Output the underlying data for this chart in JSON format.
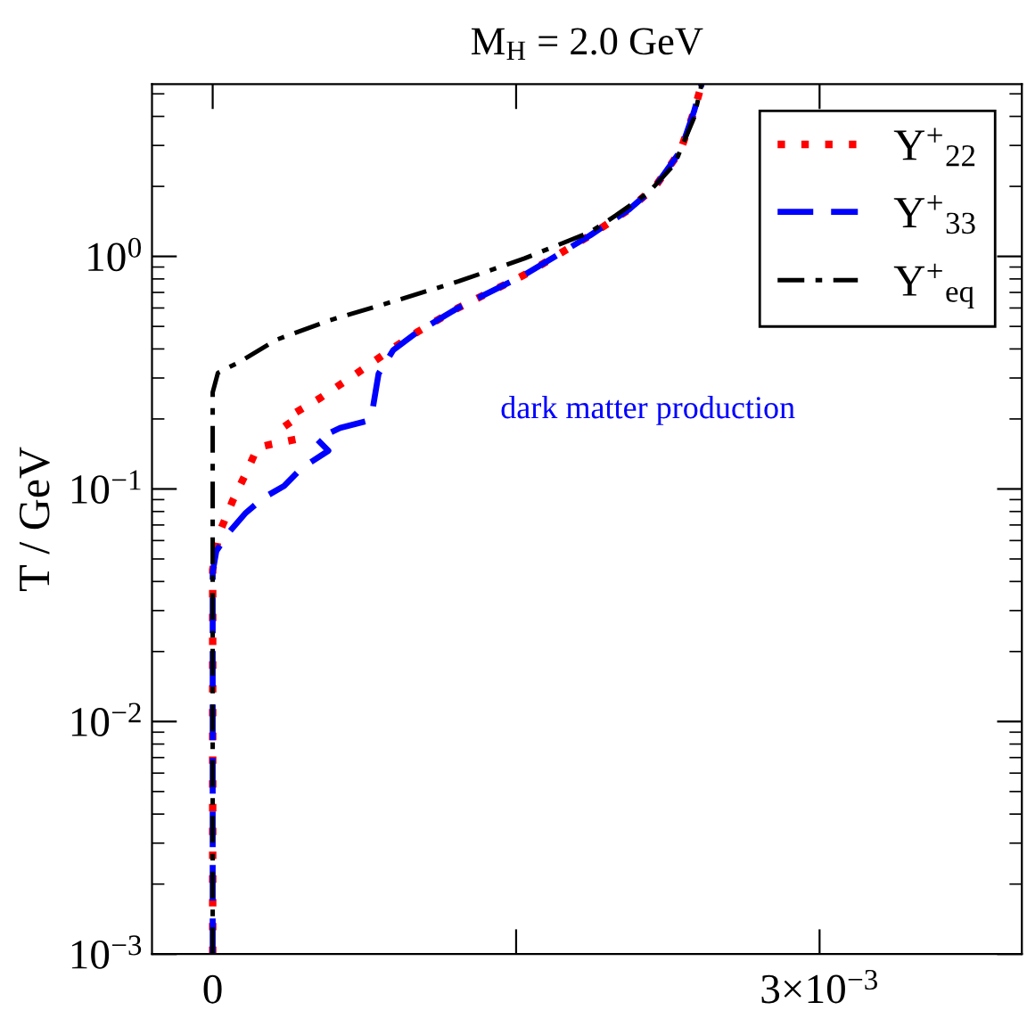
{
  "chart_data": {
    "type": "line",
    "title": "M$_{H}$ = 2.0 GeV",
    "ylabel": "T / GeV",
    "log": "y",
    "xlim": [
      -0.0003,
      0.004
    ],
    "xticks": [
      {
        "value": 0,
        "label": "0"
      },
      {
        "value": 0.0015,
        "label": null
      },
      {
        "value": 0.003,
        "label": "3×10$^{−3}$"
      }
    ],
    "ylim": [
      0.001,
      5.5
    ],
    "yticks": [
      {
        "value": 0.001,
        "label": "10$^{−3}$"
      },
      {
        "value": 0.01,
        "label": "10$^{−2}$"
      },
      {
        "value": 0.1,
        "label": "10$^{−1}$"
      },
      {
        "value": 1,
        "label": "10$^{0}$"
      }
    ],
    "grid": false,
    "legend": "top right",
    "marker": "none",
    "annotations": [
      "dark matter production"
    ],
    "series": [
      {
        "name": "Y$^{+}$$_{22}$",
        "color": "#ff0000",
        "line_style": "dotted",
        "x": [
          0,
          0,
          3.2e-05,
          9.9e-05,
          0.000169,
          0.000222,
          0.00028,
          0.00042,
          0.000353,
          0.000528,
          0.000703,
          0.000878,
          0.00101,
          0.001217,
          0.001541,
          0.001865,
          0.002058,
          0.002186,
          0.002312,
          0.002379,
          0.002417
        ],
        "values": [
          0.001,
          0.045,
          0.0644,
          0.089,
          0.119,
          0.151,
          0.155,
          0.164,
          0.199,
          0.245,
          0.31,
          0.396,
          0.472,
          0.603,
          0.833,
          1.23,
          1.59,
          1.99,
          2.84,
          4.19,
          5.5
        ]
      },
      {
        "name": "Y$^{+}$$_{33}$",
        "color": "#0000ff",
        "line_style": "dashed",
        "x": [
          0,
          0,
          1.8e-05,
          7.6e-05,
          0.000164,
          0.000251,
          0.000353,
          0.00044,
          0.000572,
          0.000514,
          0.00063,
          0.000762,
          0.000791,
          0.00082,
          0.000893,
          0.00101,
          0.001217,
          0.001541,
          0.001865,
          0.002058,
          0.002186,
          0.002312,
          0.002379,
          0.002417
        ],
        "values": [
          0.001,
          0.044,
          0.054,
          0.0644,
          0.079,
          0.0916,
          0.103,
          0.123,
          0.146,
          0.164,
          0.183,
          0.196,
          0.221,
          0.313,
          0.396,
          0.472,
          0.603,
          0.833,
          1.23,
          1.59,
          1.99,
          2.84,
          4.19,
          5.5
        ]
      },
      {
        "name": "Y$^{+}$$_{eq}$",
        "color": "#000000",
        "line_style": "dashdot",
        "x": [
          0,
          0,
          2.6e-05,
          0.000123,
          0.000315,
          0.000578,
          0.000902,
          0.001217,
          0.001541,
          0.001865,
          0.001993,
          0.002154,
          0.002283,
          0.002379,
          0.002417
        ],
        "values": [
          0.001,
          0.26,
          0.316,
          0.348,
          0.438,
          0.531,
          0.644,
          0.782,
          0.98,
          1.27,
          1.5,
          1.88,
          2.49,
          3.94,
          5.5
        ]
      }
    ]
  }
}
